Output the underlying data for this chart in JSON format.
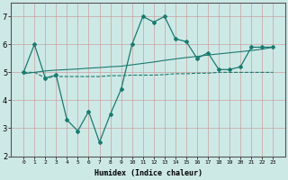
{
  "xlabel": "Humidex (Indice chaleur)",
  "x_values": [
    0,
    1,
    2,
    3,
    4,
    5,
    6,
    7,
    8,
    9,
    10,
    11,
    12,
    13,
    14,
    15,
    16,
    17,
    18,
    19,
    20,
    21,
    22,
    23
  ],
  "main_line": [
    5.0,
    6.0,
    4.8,
    4.9,
    3.3,
    2.9,
    3.6,
    2.5,
    3.5,
    4.4,
    6.0,
    7.0,
    6.8,
    7.0,
    6.2,
    6.1,
    5.5,
    5.7,
    5.1,
    5.1,
    5.2,
    5.9,
    5.9,
    5.9
  ],
  "avg_line": [
    5.0,
    5.0,
    4.8,
    4.85,
    4.85,
    4.85,
    4.85,
    4.85,
    4.88,
    4.88,
    4.9,
    4.9,
    4.9,
    4.92,
    4.95,
    4.95,
    4.97,
    4.97,
    5.0,
    5.0,
    5.0,
    5.0,
    5.0,
    5.0
  ],
  "trend_line": [
    4.95,
    5.0,
    5.05,
    5.08,
    5.1,
    5.12,
    5.15,
    5.17,
    5.2,
    5.22,
    5.27,
    5.32,
    5.37,
    5.43,
    5.48,
    5.53,
    5.57,
    5.62,
    5.66,
    5.7,
    5.74,
    5.78,
    5.83,
    5.9
  ],
  "line_color": "#1a7a6e",
  "bg_color": "#cde9e6",
  "grid_color": "#c8a0a0",
  "ylim": [
    2,
    7.5
  ],
  "yticks": [
    2,
    3,
    4,
    5,
    6,
    7
  ],
  "xticks": [
    0,
    1,
    2,
    3,
    4,
    5,
    6,
    7,
    8,
    9,
    10,
    11,
    12,
    13,
    14,
    15,
    16,
    17,
    18,
    19,
    20,
    21,
    22,
    23
  ]
}
